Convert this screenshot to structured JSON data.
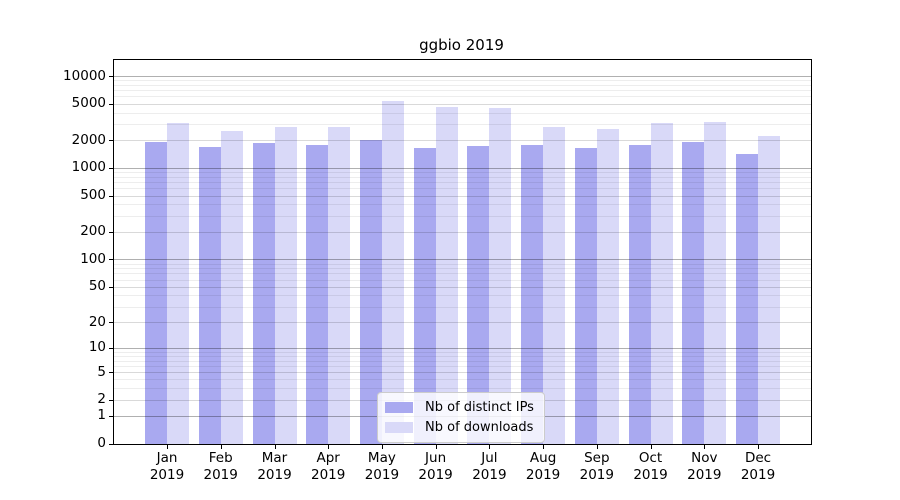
{
  "chart_data": {
    "type": "bar",
    "title": "ggbio 2019",
    "year_label": "2019",
    "categories": [
      "Jan",
      "Feb",
      "Mar",
      "Apr",
      "May",
      "Jun",
      "Jul",
      "Aug",
      "Sep",
      "Oct",
      "Nov",
      "Dec"
    ],
    "series": [
      {
        "name": "Nb of distinct IPs",
        "color": "#a9a9f0",
        "values": [
          1900,
          1700,
          1850,
          1780,
          2000,
          1650,
          1720,
          1780,
          1660,
          1780,
          1900,
          1400
        ]
      },
      {
        "name": "Nb of downloads",
        "color": "#d9d9f8",
        "values": [
          3100,
          2500,
          2800,
          2800,
          5400,
          4600,
          4500,
          2800,
          2680,
          3050,
          3200,
          2250
        ]
      }
    ],
    "y_ticks": [
      0,
      1,
      2,
      5,
      10,
      20,
      50,
      100,
      200,
      500,
      1000,
      2000,
      5000,
      10000
    ],
    "y_minor_ticks": [
      3,
      4,
      6,
      7,
      8,
      9,
      30,
      40,
      60,
      70,
      80,
      90,
      300,
      400,
      600,
      700,
      800,
      900,
      3000,
      4000,
      6000,
      7000,
      8000,
      9000
    ],
    "scale": "log1p",
    "ylim": [
      0,
      14500
    ],
    "grid": "on",
    "legend_position": "inside-bottom-center"
  }
}
